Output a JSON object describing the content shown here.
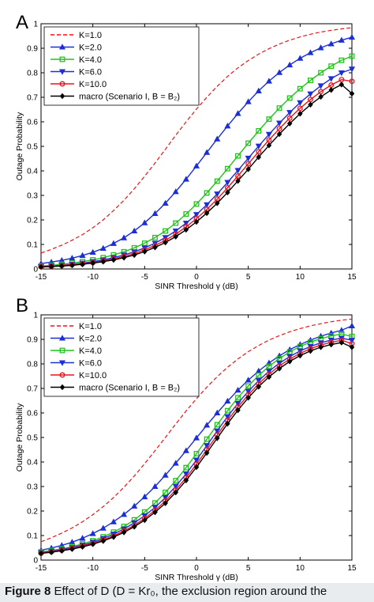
{
  "caption": {
    "label": "Figure 8",
    "text": "Effect of D (D = Kr₀, the exclusion region around the"
  },
  "chart_data": [
    {
      "panel": "A",
      "type": "line",
      "xlabel": "SINR Threshold γ (dB)",
      "ylabel": "Outage Probability",
      "xlim": [
        -15,
        15
      ],
      "ylim": [
        0,
        1
      ],
      "xticks": [
        -15,
        -10,
        -5,
        0,
        5,
        10,
        15
      ],
      "yticks": [
        0,
        0.1,
        0.2,
        0.3,
        0.4,
        0.5,
        0.6,
        0.7,
        0.8,
        0.9,
        1
      ],
      "grid": false,
      "legend_position": "top-left",
      "x": [
        -15,
        -14,
        -13,
        -12,
        -11,
        -10,
        -9,
        -8,
        -7,
        -6,
        -5,
        -4,
        -3,
        -2,
        -1,
        0,
        1,
        2,
        3,
        4,
        5,
        6,
        7,
        8,
        9,
        10,
        11,
        12,
        13,
        14,
        15
      ],
      "series": [
        {
          "name": "K=1.0",
          "color": "#e8141c",
          "style": "dashed",
          "marker": "none",
          "values": [
            0.065,
            0.08,
            0.097,
            0.117,
            0.14,
            0.168,
            0.2,
            0.238,
            0.28,
            0.327,
            0.378,
            0.432,
            0.488,
            0.545,
            0.6,
            0.652,
            0.7,
            0.745,
            0.785,
            0.82,
            0.85,
            0.876,
            0.898,
            0.917,
            0.933,
            0.946,
            0.957,
            0.966,
            0.973,
            0.979,
            0.984
          ]
        },
        {
          "name": "K=2.0",
          "color": "#1c2fd6",
          "style": "solid",
          "marker": "triangle-up",
          "values": [
            0.022,
            0.028,
            0.035,
            0.044,
            0.055,
            0.068,
            0.084,
            0.104,
            0.127,
            0.155,
            0.188,
            0.226,
            0.268,
            0.315,
            0.366,
            0.42,
            0.475,
            0.53,
            0.583,
            0.634,
            0.682,
            0.726,
            0.766,
            0.801,
            0.832,
            0.859,
            0.882,
            0.902,
            0.918,
            0.933,
            0.945
          ]
        },
        {
          "name": "K=4.0",
          "color": "#22c41c",
          "style": "solid",
          "marker": "square",
          "values": [
            0.012,
            0.015,
            0.019,
            0.024,
            0.03,
            0.037,
            0.046,
            0.057,
            0.07,
            0.086,
            0.105,
            0.128,
            0.155,
            0.187,
            0.224,
            0.265,
            0.31,
            0.358,
            0.409,
            0.461,
            0.513,
            0.563,
            0.611,
            0.656,
            0.697,
            0.735,
            0.769,
            0.8,
            0.827,
            0.851,
            0.868
          ]
        },
        {
          "name": "K=6.0",
          "color": "#1c2fd6",
          "style": "solid",
          "marker": "triangle-down",
          "values": [
            0.01,
            0.012,
            0.015,
            0.019,
            0.024,
            0.03,
            0.037,
            0.046,
            0.057,
            0.07,
            0.086,
            0.105,
            0.128,
            0.155,
            0.187,
            0.222,
            0.262,
            0.306,
            0.353,
            0.402,
            0.452,
            0.501,
            0.549,
            0.595,
            0.638,
            0.678,
            0.714,
            0.747,
            0.776,
            0.8,
            0.815
          ]
        },
        {
          "name": "K=10.0",
          "color": "#e8141c",
          "style": "solid",
          "marker": "circle",
          "values": [
            0.009,
            0.011,
            0.014,
            0.017,
            0.021,
            0.026,
            0.033,
            0.041,
            0.051,
            0.063,
            0.078,
            0.096,
            0.117,
            0.142,
            0.172,
            0.205,
            0.243,
            0.285,
            0.331,
            0.379,
            0.429,
            0.478,
            0.526,
            0.572,
            0.615,
            0.655,
            0.691,
            0.723,
            0.75,
            0.772,
            0.765
          ]
        },
        {
          "name": "macro (Scenario I, B = B₂)",
          "color": "#000000",
          "style": "solid",
          "marker": "diamond",
          "values": [
            0.008,
            0.01,
            0.012,
            0.015,
            0.019,
            0.024,
            0.03,
            0.037,
            0.046,
            0.057,
            0.071,
            0.088,
            0.108,
            0.132,
            0.16,
            0.192,
            0.228,
            0.268,
            0.312,
            0.359,
            0.407,
            0.456,
            0.504,
            0.55,
            0.593,
            0.633,
            0.67,
            0.702,
            0.73,
            0.752,
            0.715
          ]
        }
      ]
    },
    {
      "panel": "B",
      "type": "line",
      "xlabel": "SINR Threshold γ (dB)",
      "ylabel": "Outage Probability",
      "xlim": [
        -15,
        15
      ],
      "ylim": [
        0,
        1
      ],
      "xticks": [
        -15,
        -10,
        -5,
        0,
        5,
        10,
        15
      ],
      "yticks": [
        0,
        0.1,
        0.2,
        0.3,
        0.4,
        0.5,
        0.6,
        0.7,
        0.8,
        0.9,
        1
      ],
      "grid": false,
      "legend_position": "top-left",
      "x": [
        -15,
        -14,
        -13,
        -12,
        -11,
        -10,
        -9,
        -8,
        -7,
        -6,
        -5,
        -4,
        -3,
        -2,
        -1,
        0,
        1,
        2,
        3,
        4,
        5,
        6,
        7,
        8,
        9,
        10,
        11,
        12,
        13,
        14,
        15
      ],
      "series": [
        {
          "name": "K=1.0",
          "color": "#e8141c",
          "style": "dashed",
          "marker": "none",
          "values": [
            0.075,
            0.091,
            0.11,
            0.131,
            0.156,
            0.185,
            0.218,
            0.255,
            0.297,
            0.343,
            0.393,
            0.446,
            0.5,
            0.555,
            0.608,
            0.658,
            0.705,
            0.748,
            0.786,
            0.82,
            0.85,
            0.875,
            0.897,
            0.915,
            0.931,
            0.944,
            0.955,
            0.964,
            0.972,
            0.978,
            0.983
          ]
        },
        {
          "name": "K=2.0",
          "color": "#1c2fd6",
          "style": "solid",
          "marker": "triangle-up",
          "values": [
            0.04,
            0.049,
            0.06,
            0.073,
            0.089,
            0.108,
            0.13,
            0.156,
            0.186,
            0.22,
            0.258,
            0.3,
            0.346,
            0.395,
            0.446,
            0.498,
            0.55,
            0.6,
            0.648,
            0.693,
            0.734,
            0.771,
            0.804,
            0.833,
            0.858,
            0.879,
            0.897,
            0.913,
            0.926,
            0.937,
            0.955
          ]
        },
        {
          "name": "K=4.0",
          "color": "#22c41c",
          "style": "solid",
          "marker": "square",
          "values": [
            0.033,
            0.039,
            0.046,
            0.055,
            0.066,
            0.079,
            0.095,
            0.114,
            0.137,
            0.164,
            0.196,
            0.233,
            0.276,
            0.324,
            0.377,
            0.434,
            0.493,
            0.552,
            0.609,
            0.662,
            0.71,
            0.753,
            0.79,
            0.822,
            0.849,
            0.871,
            0.889,
            0.903,
            0.914,
            0.922,
            0.912
          ]
        },
        {
          "name": "K=6.0",
          "color": "#1c2fd6",
          "style": "solid",
          "marker": "triangle-down",
          "values": [
            0.03,
            0.036,
            0.043,
            0.051,
            0.061,
            0.073,
            0.088,
            0.106,
            0.127,
            0.152,
            0.181,
            0.215,
            0.255,
            0.301,
            0.352,
            0.408,
            0.467,
            0.527,
            0.585,
            0.639,
            0.688,
            0.732,
            0.77,
            0.803,
            0.83,
            0.853,
            0.871,
            0.886,
            0.897,
            0.905,
            0.896
          ]
        },
        {
          "name": "K=10.0",
          "color": "#e8141c",
          "style": "solid",
          "marker": "circle",
          "values": [
            0.028,
            0.034,
            0.04,
            0.048,
            0.057,
            0.068,
            0.082,
            0.099,
            0.119,
            0.142,
            0.17,
            0.203,
            0.241,
            0.286,
            0.336,
            0.391,
            0.45,
            0.51,
            0.569,
            0.624,
            0.674,
            0.719,
            0.758,
            0.792,
            0.82,
            0.843,
            0.862,
            0.877,
            0.888,
            0.896,
            0.883
          ]
        },
        {
          "name": "macro (Scenario I, B = B₂)",
          "color": "#000000",
          "style": "solid",
          "marker": "diamond",
          "values": [
            0.027,
            0.032,
            0.038,
            0.045,
            0.054,
            0.065,
            0.078,
            0.094,
            0.113,
            0.136,
            0.163,
            0.195,
            0.232,
            0.276,
            0.325,
            0.379,
            0.437,
            0.497,
            0.556,
            0.611,
            0.662,
            0.707,
            0.747,
            0.781,
            0.81,
            0.834,
            0.853,
            0.868,
            0.879,
            0.887,
            0.868
          ]
        }
      ]
    }
  ]
}
